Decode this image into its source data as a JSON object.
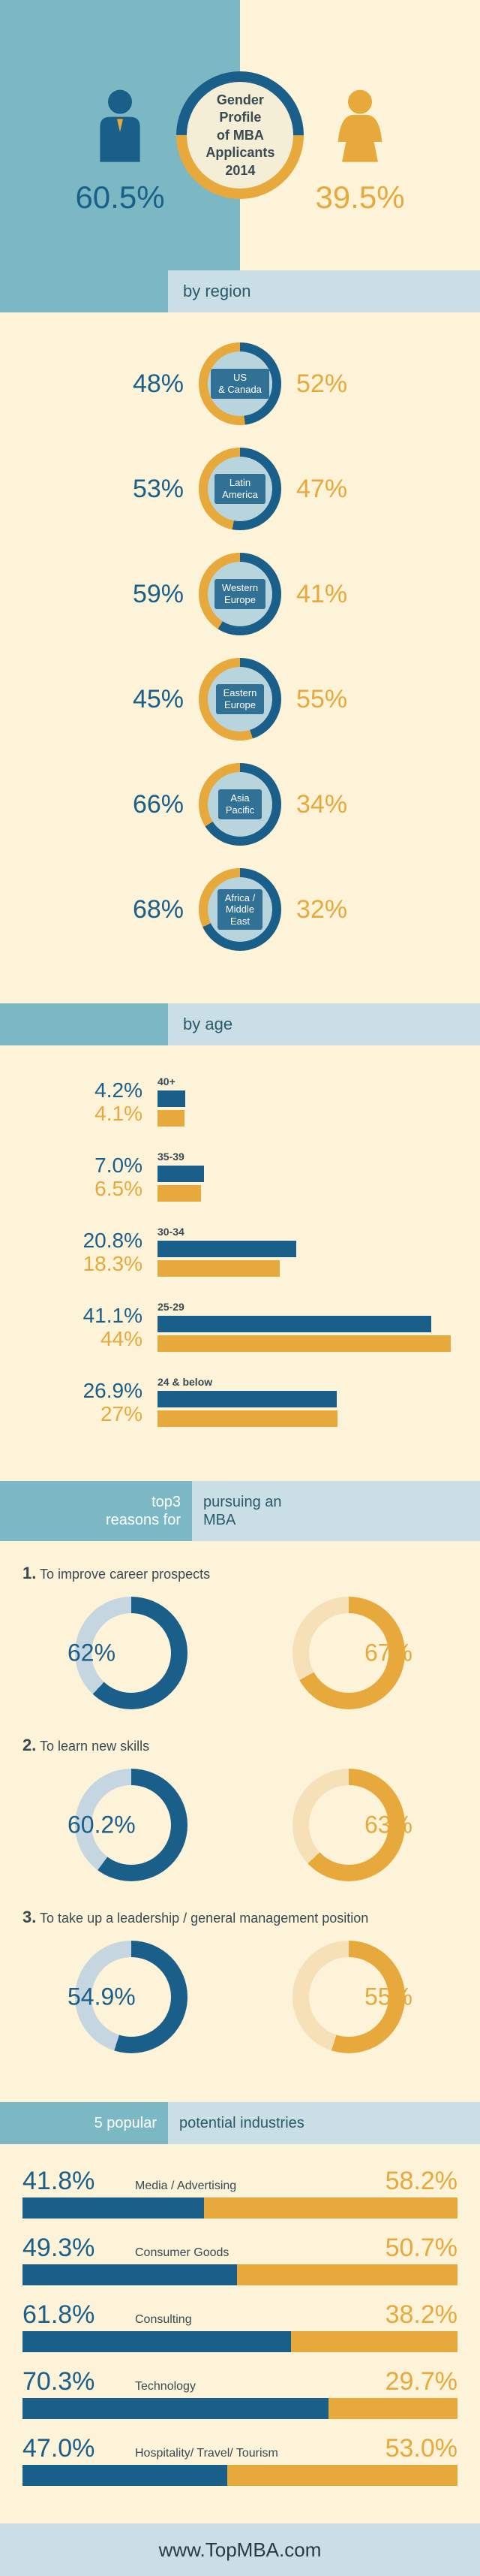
{
  "colors": {
    "male": "#1a5f8a",
    "female": "#e8a93c",
    "teal": "#7bb8c4",
    "lightteal": "#c9dfe5",
    "cream": "#fcf3d9"
  },
  "title": {
    "l1": "Gender",
    "l2": "Profile",
    "l3": "of MBA",
    "l4": "Applicants",
    "l5": "2014"
  },
  "header": {
    "male_pct": "60.5%",
    "female_pct": "39.5%"
  },
  "section_region": "by region",
  "regions": [
    {
      "m": "48%",
      "f": "52%",
      "label": "US\n& Canada",
      "m_val": 48
    },
    {
      "m": "53%",
      "f": "47%",
      "label": "Latin\nAmerica",
      "m_val": 53
    },
    {
      "m": "59%",
      "f": "41%",
      "label": "Western\nEurope",
      "m_val": 59
    },
    {
      "m": "45%",
      "f": "55%",
      "label": "Eastern\nEurope",
      "m_val": 45
    },
    {
      "m": "66%",
      "f": "34%",
      "label": "Asia\nPacific",
      "m_val": 66
    },
    {
      "m": "68%",
      "f": "32%",
      "label": "Africa /\nMiddle\nEast",
      "m_val": 68
    }
  ],
  "section_age": "by age",
  "age_max": 45,
  "ages": [
    {
      "label": "40+",
      "m": "4.2%",
      "f": "4.1%",
      "mv": 4.2,
      "fv": 4.1
    },
    {
      "label": "35-39",
      "m": "7.0%",
      "f": "6.5%",
      "mv": 7.0,
      "fv": 6.5
    },
    {
      "label": "30-34",
      "m": "20.8%",
      "f": "18.3%",
      "mv": 20.8,
      "fv": 18.3
    },
    {
      "label": "25-29",
      "m": "41.1%",
      "f": "44%",
      "mv": 41.1,
      "fv": 44
    },
    {
      "label": "24 & below",
      "m": "26.9%",
      "f": "27%",
      "mv": 26.9,
      "fv": 27
    }
  ],
  "reasons_head_l": "top3\nreasons for",
  "reasons_head_r": "pursuing an\nMBA",
  "reasons": [
    {
      "n": "1.",
      "title": "To improve career prospects",
      "m": "62%",
      "f": "67%",
      "mv": 62,
      "fv": 67
    },
    {
      "n": "2.",
      "title": "To learn new skills",
      "m": "60.2%",
      "f": "63%",
      "mv": 60.2,
      "fv": 63
    },
    {
      "n": "3.",
      "title": "To take up a leadership / general management position",
      "m": "54.9%",
      "f": "55%",
      "mv": 54.9,
      "fv": 55
    }
  ],
  "industries_head_l": "5 popular",
  "industries_head_r": "potential industries",
  "industries": [
    {
      "label": "Media / Advertising",
      "m": "41.8%",
      "f": "58.2%",
      "mv": 41.8
    },
    {
      "label": "Consumer Goods",
      "m": "49.3%",
      "f": "50.7%",
      "mv": 49.3
    },
    {
      "label": "Consulting",
      "m": "61.8%",
      "f": "38.2%",
      "mv": 61.8
    },
    {
      "label": "Technology",
      "m": "70.3%",
      "f": "29.7%",
      "mv": 70.3
    },
    {
      "label": "Hospitality/ Travel/ Tourism",
      "m": "47.0%",
      "f": "53.0%",
      "mv": 47.0
    }
  ],
  "footer": "www.TopMBA.com"
}
